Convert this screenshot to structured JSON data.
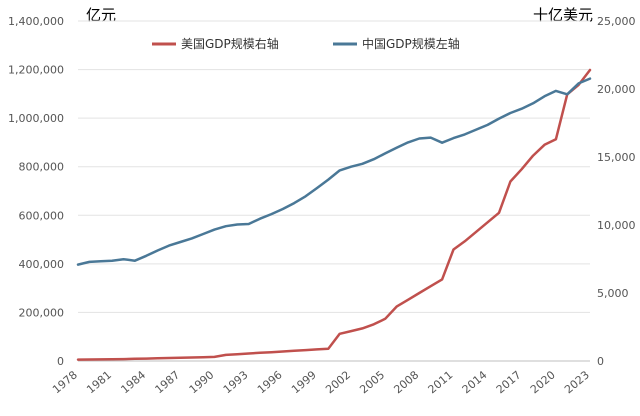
{
  "chart_data": {
    "type": "line",
    "left_unit": "亿元",
    "right_unit": "十亿美元",
    "left_axis": {
      "min": 0,
      "max": 1400000,
      "step": 200000,
      "ticks": [
        "0",
        "200,000",
        "400,000",
        "600,000",
        "800,000",
        "1,000,000",
        "1,200,000",
        "1,400,000"
      ]
    },
    "right_axis": {
      "min": 0,
      "max": 25000,
      "step": 5000,
      "ticks": [
        "0",
        "5,000",
        "10,000",
        "15,000",
        "20,000",
        "25,000"
      ]
    },
    "x": [
      1978,
      1979,
      1980,
      1981,
      1982,
      1983,
      1984,
      1985,
      1986,
      1987,
      1988,
      1989,
      1990,
      1991,
      1992,
      1993,
      1994,
      1995,
      1996,
      1997,
      1998,
      1999,
      2000,
      2001,
      2002,
      2003,
      2004,
      2005,
      2006,
      2007,
      2008,
      2009,
      2010,
      2011,
      2012,
      2013,
      2014,
      2015,
      2016,
      2017,
      2018,
      2019,
      2020,
      2021,
      2022,
      2023
    ],
    "x_ticks": [
      "1978",
      "1981",
      "1984",
      "1987",
      "1990",
      "1993",
      "1996",
      "1999",
      "2002",
      "2005",
      "2008",
      "2011",
      "2014",
      "2017",
      "2020",
      "2023"
    ],
    "series": [
      {
        "name": "美国GDP规模右轴",
        "axis": "right",
        "color": "#c0504d",
        "values": [
          100,
          110,
          120,
          130,
          140,
          160,
          180,
          200,
          220,
          240,
          260,
          280,
          300,
          450,
          500,
          550,
          600,
          650,
          700,
          750,
          800,
          850,
          900,
          2000,
          2200,
          2400,
          2700,
          3100,
          4000,
          4500,
          5000,
          5500,
          6000,
          8200,
          8800,
          9500,
          10200,
          10900,
          13200,
          14100,
          15100,
          15900,
          16300,
          19600,
          20300,
          21400
        ]
      },
      {
        "name": "中国GDP规模左轴",
        "axis": "left",
        "color": "#4a7897",
        "values": [
          397000,
          408000,
          411000,
          413000,
          419000,
          413000,
          433000,
          455000,
          475000,
          490000,
          505000,
          523000,
          541000,
          555000,
          562000,
          564000,
          586000,
          605000,
          626000,
          650000,
          678000,
          712000,
          747000,
          785000,
          800000,
          812000,
          831000,
          855000,
          878000,
          900000,
          916000,
          920000,
          899000,
          918000,
          933000,
          953000,
          972000,
          998000,
          1021000,
          1039000,
          1061000,
          1090000,
          1112000,
          1098000,
          1143000,
          1163000
        ]
      }
    ]
  }
}
